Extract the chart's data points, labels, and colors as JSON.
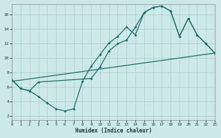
{
  "xlabel": "Humidex (Indice chaleur)",
  "background_color": "#cce8e8",
  "grid_color": "#aacccc",
  "line_color": "#1a6b6b",
  "xlim": [
    0,
    23
  ],
  "ylim": [
    1.5,
    17.5
  ],
  "yticks": [
    2,
    4,
    6,
    8,
    10,
    12,
    14,
    16
  ],
  "xticks": [
    0,
    1,
    2,
    3,
    4,
    5,
    6,
    7,
    8,
    9,
    10,
    11,
    12,
    13,
    14,
    15,
    16,
    17,
    18,
    19,
    20,
    21,
    22,
    23
  ],
  "line1_x": [
    0,
    1,
    2,
    3,
    4,
    5,
    6,
    7,
    8,
    9,
    10,
    11,
    12,
    13,
    14,
    15,
    16,
    17,
    18,
    19,
    20,
    21,
    22,
    23
  ],
  "line1_y": [
    7.0,
    5.8,
    5.5,
    4.7,
    3.8,
    3.0,
    2.7,
    3.0,
    6.8,
    8.9,
    10.5,
    12.1,
    13.0,
    14.3,
    13.2,
    16.3,
    17.0,
    17.2,
    16.5,
    13.0,
    15.5,
    13.2,
    12.0,
    10.7
  ],
  "line2_x": [
    0,
    1,
    2,
    3,
    9,
    10,
    11,
    12,
    13,
    14,
    15,
    16,
    17,
    18,
    19,
    20,
    21,
    22,
    23
  ],
  "line2_y": [
    7.0,
    5.8,
    5.5,
    6.7,
    7.2,
    8.8,
    11.0,
    12.0,
    12.5,
    14.3,
    16.3,
    17.0,
    17.2,
    16.5,
    13.0,
    15.5,
    13.2,
    12.0,
    10.7
  ],
  "line3_x": [
    0,
    23
  ],
  "line3_y": [
    6.8,
    10.7
  ]
}
